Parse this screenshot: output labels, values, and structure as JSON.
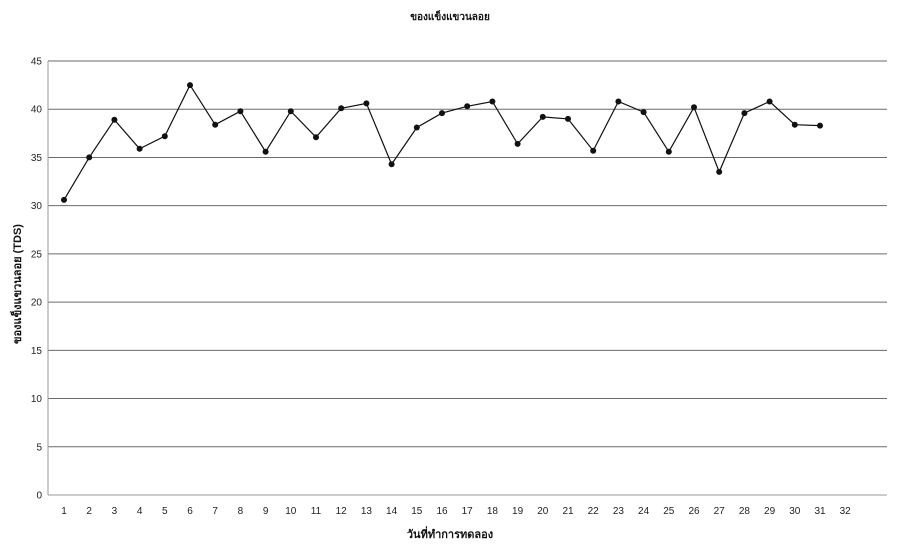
{
  "chart_data": {
    "type": "line",
    "title": "ของแข็งแขวนลอย",
    "xlabel": "วันที่ทำการทดลอง",
    "ylabel": "ของแข็งแขวนลอย (TDS)",
    "ylim": [
      0,
      45
    ],
    "yticks": [
      0,
      5,
      10,
      15,
      20,
      25,
      30,
      35,
      40,
      45
    ],
    "xlim": [
      1,
      32
    ],
    "xticks": [
      1,
      2,
      3,
      4,
      5,
      6,
      7,
      8,
      9,
      10,
      11,
      12,
      13,
      14,
      15,
      16,
      17,
      18,
      19,
      20,
      21,
      22,
      23,
      24,
      25,
      26,
      27,
      28,
      29,
      30,
      31,
      32
    ],
    "grid": "horizontal",
    "legend": "none",
    "series": [
      {
        "x": [
          1,
          2,
          3,
          4,
          5,
          6,
          7,
          8,
          9,
          10,
          11,
          12,
          13,
          14,
          15,
          16,
          17,
          18,
          19,
          20,
          21,
          22,
          23,
          24,
          25,
          26,
          27,
          28,
          29,
          30,
          31
        ],
        "values": [
          30.6,
          35.0,
          38.9,
          35.9,
          37.2,
          42.5,
          38.4,
          39.8,
          35.6,
          39.8,
          37.1,
          40.1,
          40.6,
          34.3,
          38.1,
          39.6,
          40.3,
          40.8,
          36.4,
          39.2,
          39.0,
          35.7,
          40.8,
          39.7,
          35.6,
          40.2,
          33.5,
          39.6,
          40.8,
          38.4,
          38.3
        ]
      }
    ],
    "colors": {
      "line": "#111111",
      "grid": "#6a6a6a"
    }
  }
}
